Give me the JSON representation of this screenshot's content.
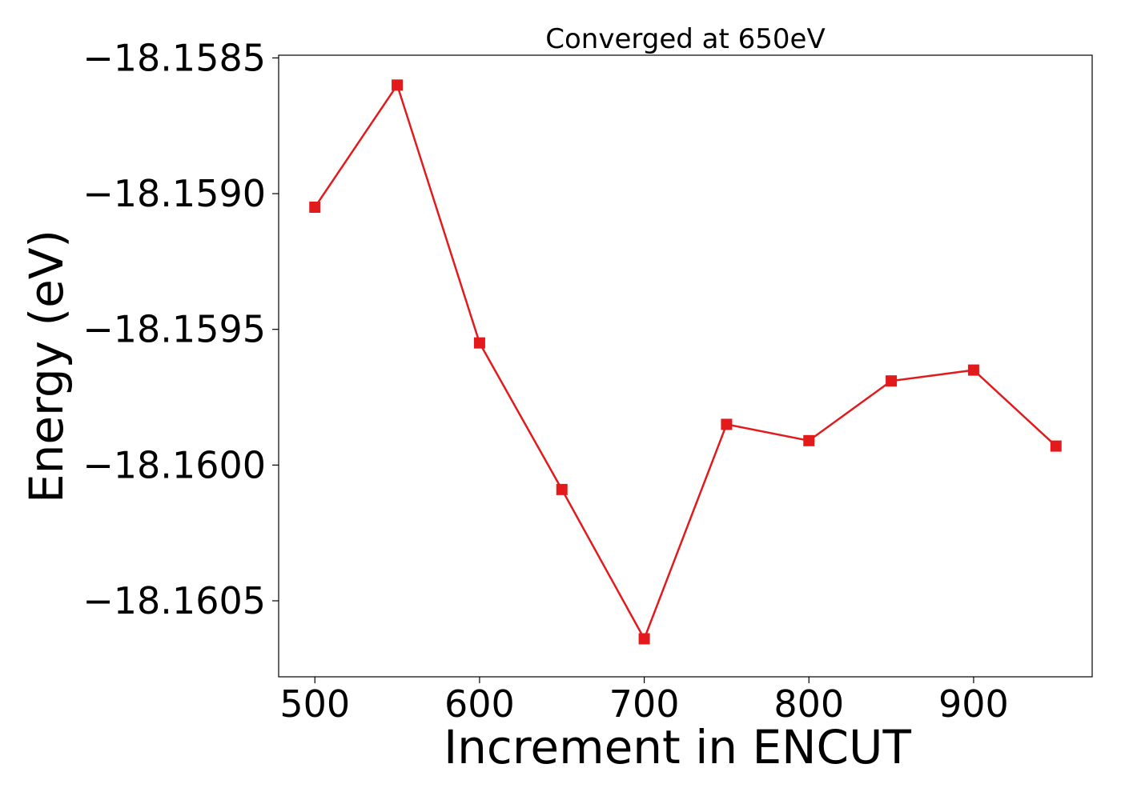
{
  "chart_data": {
    "type": "line",
    "title": "Converged at 650eV",
    "xlabel": "Increment in ENCUT",
    "ylabel": "Energy (eV)",
    "x": [
      500,
      550,
      600,
      650,
      700,
      750,
      800,
      850,
      900,
      950
    ],
    "series": [
      {
        "values": [
          -18.15905,
          -18.1586,
          -18.15955,
          -18.16009,
          -18.16064,
          -18.15985,
          -18.15991,
          -18.15969,
          -18.15965,
          -18.15993
        ],
        "color": "#e31a1c",
        "marker": "square"
      }
    ],
    "xlim": [
      478,
      972
    ],
    "ylim": [
      -18.16078,
      -18.15849
    ],
    "xticks": [
      500,
      600,
      700,
      800,
      900
    ],
    "xtick_labels": [
      "500",
      "600",
      "700",
      "800",
      "900"
    ],
    "yticks": [
      -18.1585,
      -18.159,
      -18.1595,
      -18.16,
      -18.1605
    ],
    "ytick_labels": [
      "−18.1585",
      "−18.1590",
      "−18.1595",
      "−18.1600",
      "−18.1605"
    ],
    "grid": false,
    "legend": "none"
  }
}
